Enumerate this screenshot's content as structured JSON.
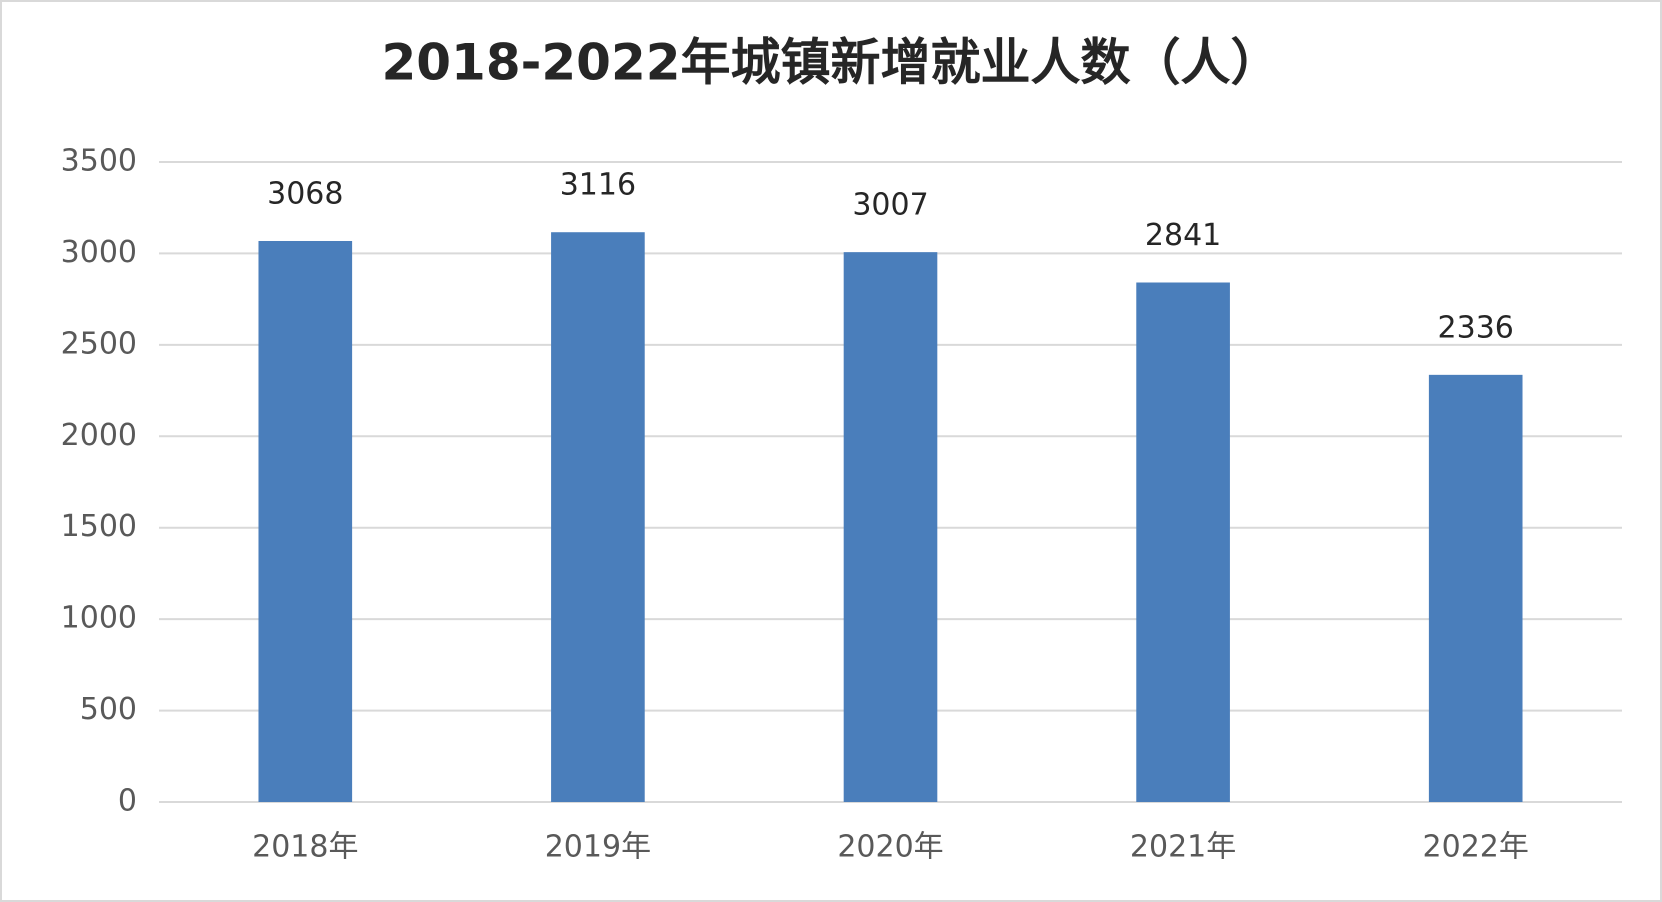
{
  "chart_data": {
    "type": "bar",
    "title": "2018-2022年城镇新增就业人数（人）",
    "categories": [
      "2018年",
      "2019年",
      "2020年",
      "2021年",
      "2022年"
    ],
    "values": [
      3068,
      3116,
      3007,
      2841,
      2336
    ],
    "color": "#4a7ebb",
    "ylim": [
      0,
      3500
    ],
    "yticks": [
      0,
      500,
      1000,
      1500,
      2000,
      2500,
      3000,
      3500
    ],
    "grid": true
  }
}
